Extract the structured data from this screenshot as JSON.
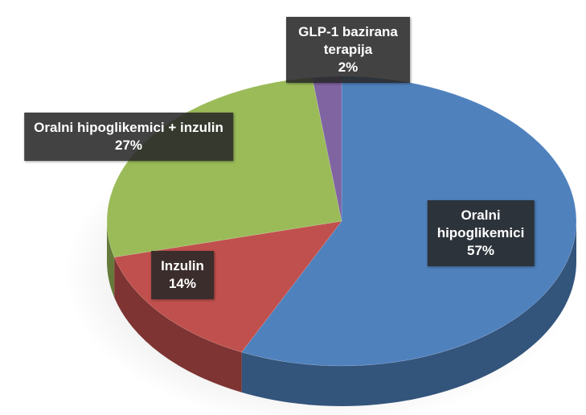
{
  "chart_data": {
    "type": "pie",
    "categories": [
      "Oralni hipoglikemici",
      "Inzulin",
      "Oralni hipoglikemici + inzulin",
      "GLP-1 bazirana terapija"
    ],
    "values": [
      57,
      14,
      27,
      2
    ],
    "value_labels": [
      "57%",
      "14%",
      "27%",
      "2%"
    ],
    "colors": [
      "#4f81bd",
      "#c0504d",
      "#9bbb59",
      "#8064a2"
    ]
  }
}
